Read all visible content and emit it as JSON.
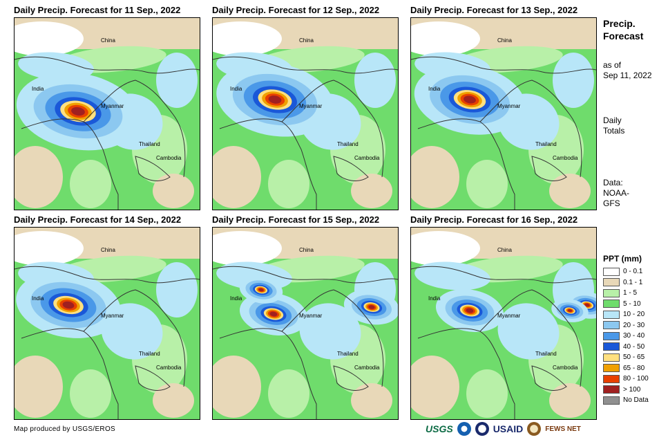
{
  "panels": [
    {
      "title": "Daily Precip. Forecast for 11 Sep., 2022"
    },
    {
      "title": "Daily Precip. Forecast for 12 Sep., 2022"
    },
    {
      "title": "Daily Precip. Forecast for 13 Sep., 2022"
    },
    {
      "title": "Daily Precip. Forecast for 14 Sep., 2022"
    },
    {
      "title": "Daily Precip. Forecast for 15 Sep., 2022"
    },
    {
      "title": "Daily Precip. Forecast for 16 Sep., 2022"
    }
  ],
  "map_labels": {
    "china": "China",
    "india": "India",
    "myanmar": "Myanmar",
    "thailand": "Thailand",
    "cambodia": "Cambodia"
  },
  "sidebar": {
    "title_line1": "Precip.",
    "title_line2": "Forecast",
    "asof_line1": "as of",
    "asof_line2": "Sep 11, 2022",
    "daily_line1": "Daily",
    "daily_line2": "Totals",
    "data_line1": "Data:",
    "data_line2": "NOAA-",
    "data_line3": "GFS"
  },
  "legend": {
    "title": "PPT (mm)",
    "items": [
      {
        "label": "0 - 0.1",
        "color": "#ffffff"
      },
      {
        "label": "0.1 - 1",
        "color": "#e8d8b8"
      },
      {
        "label": "1 - 5",
        "color": "#b8f0a8"
      },
      {
        "label": "5 - 10",
        "color": "#6fdc6c"
      },
      {
        "label": "10 - 20",
        "color": "#b8e6f8"
      },
      {
        "label": "20 - 30",
        "color": "#8cc8f0"
      },
      {
        "label": "30 - 40",
        "color": "#4a98e8"
      },
      {
        "label": "40 - 50",
        "color": "#1a58d8"
      },
      {
        "label": "50 - 65",
        "color": "#ffe080"
      },
      {
        "label": "65 - 80",
        "color": "#f0a000"
      },
      {
        "label": "80 - 100",
        "color": "#e84000"
      },
      {
        "label": "> 100",
        "color": "#a02020"
      },
      {
        "label": "No Data",
        "color": "#909090"
      }
    ]
  },
  "footer": {
    "credit": "Map produced by USGS/EROS"
  },
  "logos": {
    "usgs": "USGS",
    "usaid": "USAID",
    "fews": "FEWS NET"
  }
}
